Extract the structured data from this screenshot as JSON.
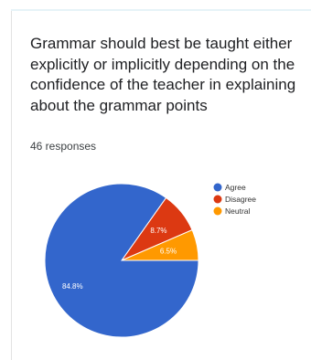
{
  "question": {
    "title": "Grammar should best be taught either explicitly or implicitly depending on the confidence of the teacher in explaining about the grammar points",
    "responses": "46 responses"
  },
  "chart_data": {
    "type": "pie",
    "title": "",
    "slices": [
      {
        "label": "Agree",
        "value": 84.8,
        "display": "84.8%",
        "color": "#3366cc"
      },
      {
        "label": "Disagree",
        "value": 8.7,
        "display": "8.7%",
        "color": "#dc3912"
      },
      {
        "label": "Neutral",
        "value": 6.5,
        "display": "6.5%",
        "color": "#ff9900"
      }
    ],
    "legend_position": "right"
  }
}
